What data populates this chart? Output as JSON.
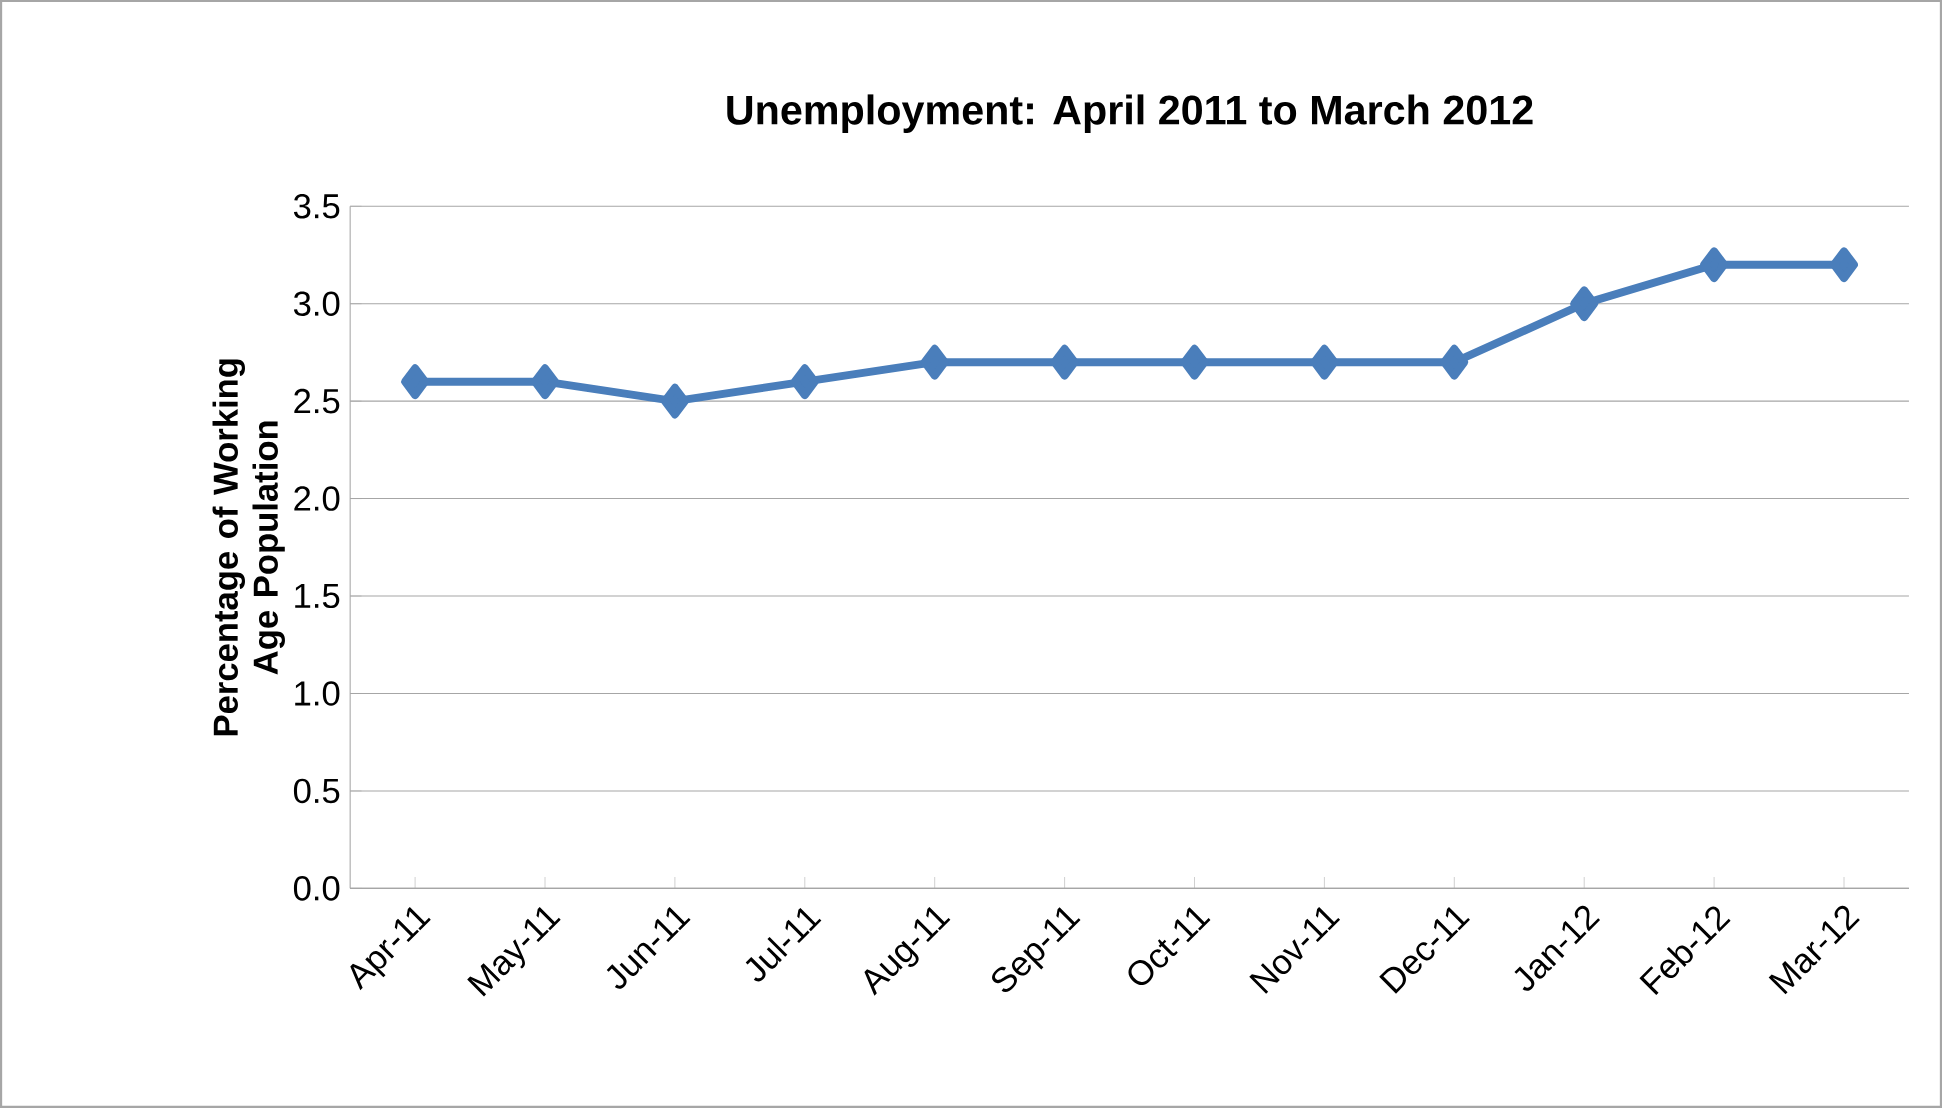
{
  "chart_data": {
    "type": "line",
    "title": "Unemployment: April 2011 to March 2012",
    "ylabel": "Percentage of Working Age Population",
    "categories": [
      "Apr-11",
      "May-11",
      "Jun-11",
      "Jul-11",
      "Aug-11",
      "Sep-11",
      "Oct-11",
      "Nov-11",
      "Dec-11",
      "Jan-12",
      "Feb-12",
      "Mar-12"
    ],
    "values": [
      2.6,
      2.6,
      2.5,
      2.6,
      2.7,
      2.7,
      2.7,
      2.7,
      2.7,
      3.0,
      3.2,
      3.2
    ],
    "color": "#4a7ebb",
    "marker": "diamond",
    "line_style": "solid",
    "grid": "y",
    "ylim": [
      0,
      3.5
    ],
    "yticks": [
      {
        "value": 0,
        "label": "0.0"
      },
      0.5,
      {
        "value": 1,
        "label": "1.0"
      },
      1.5,
      {
        "value": 2,
        "label": "2.0"
      },
      2.5,
      {
        "value": 3,
        "label": "3.0"
      },
      3.5
    ]
  }
}
